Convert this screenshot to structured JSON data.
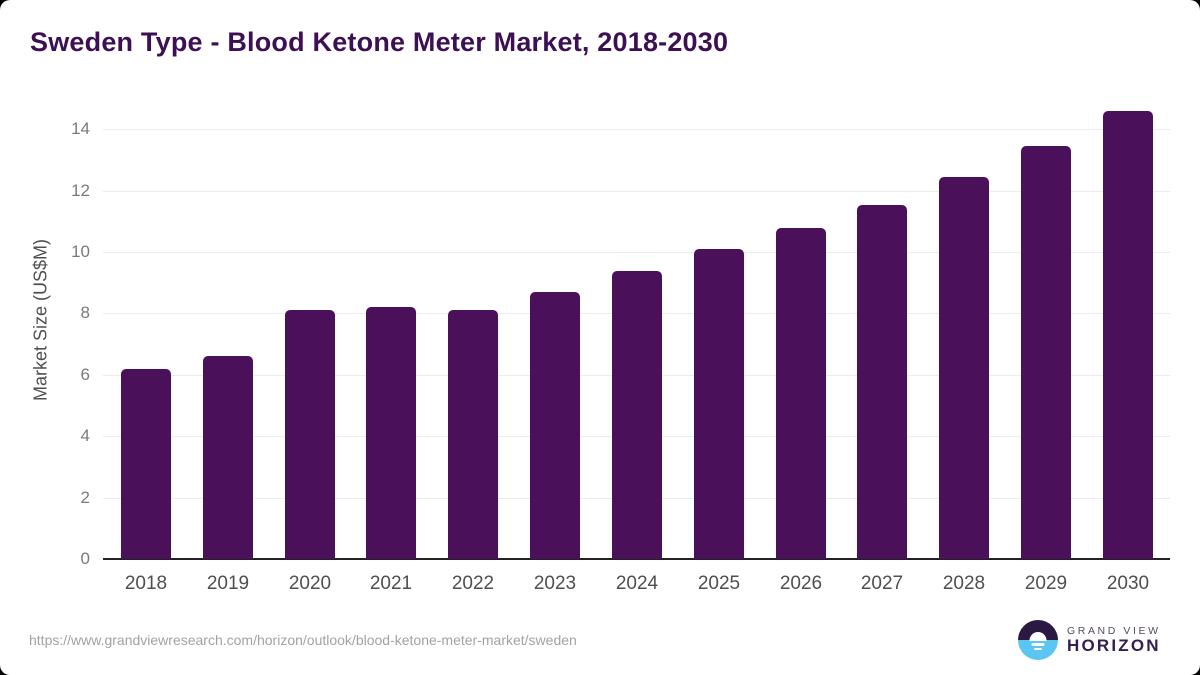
{
  "page": {
    "title": "Sweden Type - Blood Ketone Meter Market, 2018-2030"
  },
  "chart_data": {
    "type": "bar",
    "title": "Sweden Type - Blood Ketone Meter Market, 2018-2030",
    "categories": [
      "2018",
      "2019",
      "2020",
      "2021",
      "2022",
      "2023",
      "2024",
      "2025",
      "2026",
      "2027",
      "2028",
      "2029",
      "2030"
    ],
    "values": [
      6.2,
      6.6,
      8.1,
      8.2,
      8.1,
      8.7,
      9.4,
      10.1,
      10.8,
      11.55,
      12.45,
      13.45,
      14.6
    ],
    "xlabel": "",
    "ylabel": "Market Size (US$M)",
    "ylim": [
      0,
      15
    ],
    "yticks": [
      0,
      2,
      4,
      6,
      8,
      10,
      12,
      14
    ],
    "grid": true,
    "legend": false,
    "bar_color": "#4a115a"
  },
  "colors": {
    "title": "#3d1053",
    "bar": "#4a115a",
    "gridline": "#ebebeb",
    "axis_line": "#222222",
    "logo_blue": "#5bc6f2",
    "logo_dark": "#2a1a43"
  },
  "footer": {
    "source_url": "https://www.grandviewresearch.com/horizon/outlook/blood-ketone-meter-market/sweden",
    "logo": {
      "line1": "GRAND VIEW",
      "line2": "HORIZON"
    }
  }
}
